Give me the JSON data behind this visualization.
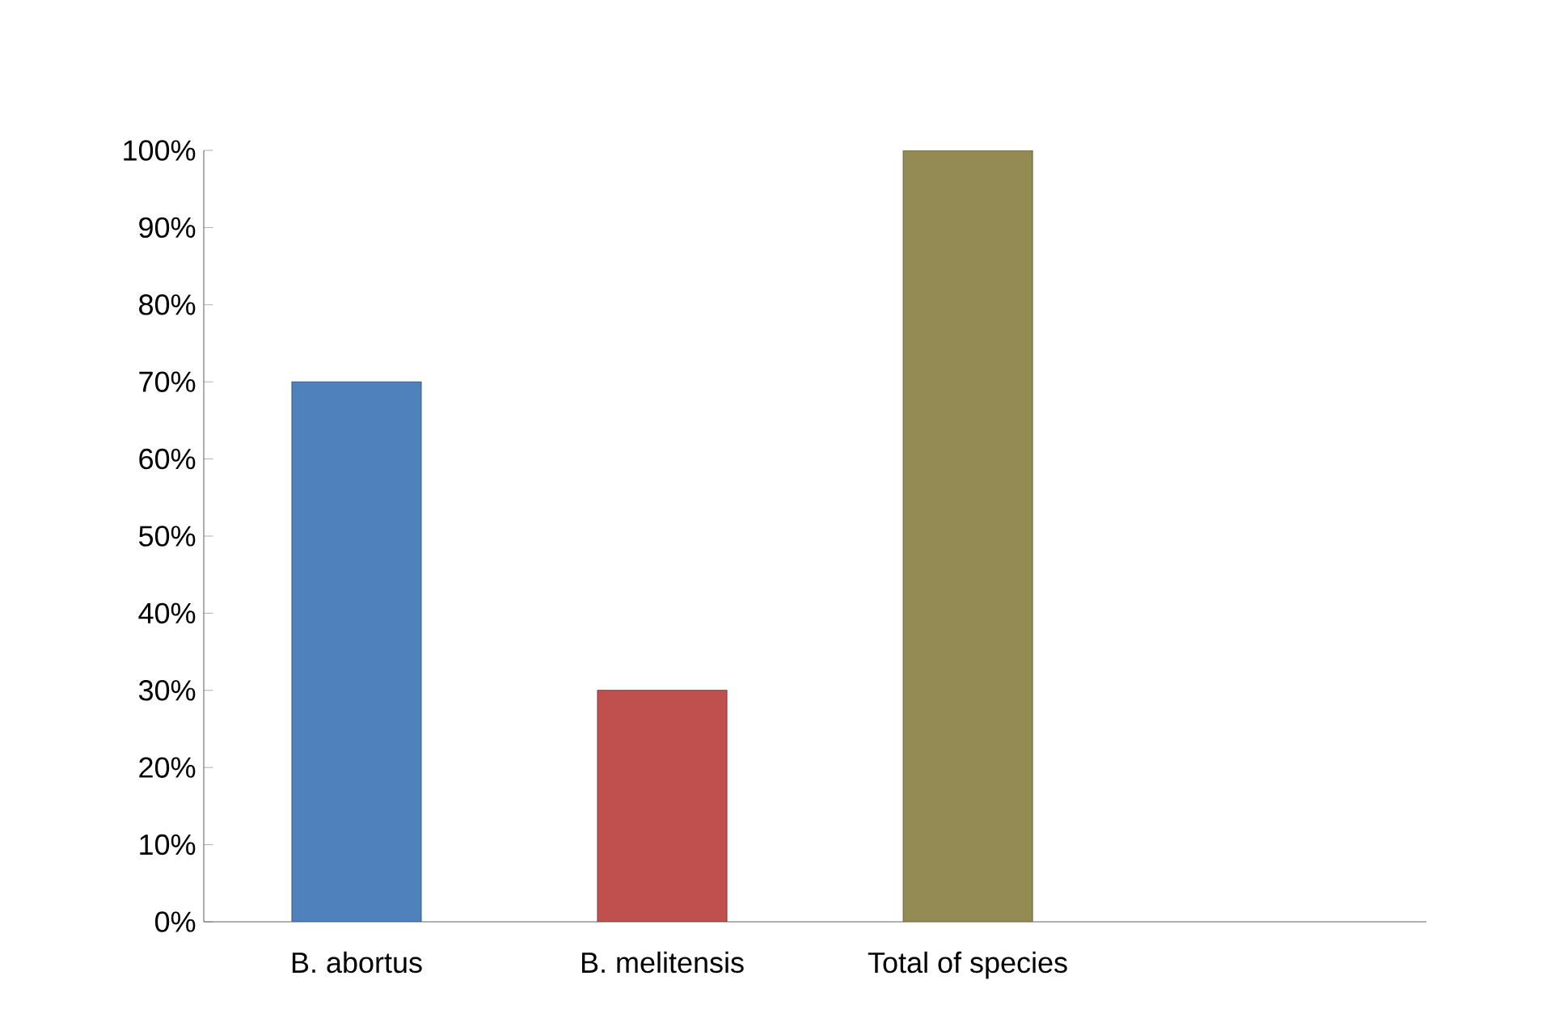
{
  "chart_data": {
    "type": "bar",
    "categories": [
      "B. abortus",
      "B. melitensis",
      "Total of species",
      null
    ],
    "values": [
      70,
      30,
      100,
      null
    ],
    "colors": [
      "#4f81bd",
      "#c0504d",
      "#948a54",
      "#808080"
    ],
    "ylim": [
      0,
      100
    ],
    "yticks": [
      {
        "value": 0,
        "label": "0%"
      },
      {
        "value": 10,
        "label": "10%"
      },
      {
        "value": 20,
        "label": "20%"
      },
      {
        "value": 30,
        "label": "30%"
      },
      {
        "value": 40,
        "label": "40%"
      },
      {
        "value": 50,
        "label": "50%"
      },
      {
        "value": 60,
        "label": "60%"
      },
      {
        "value": 70,
        "label": "70%"
      },
      {
        "value": 80,
        "label": "80%"
      },
      {
        "value": 90,
        "label": "90%"
      },
      {
        "value": 100,
        "label": "100%"
      }
    ],
    "grid": false
  }
}
